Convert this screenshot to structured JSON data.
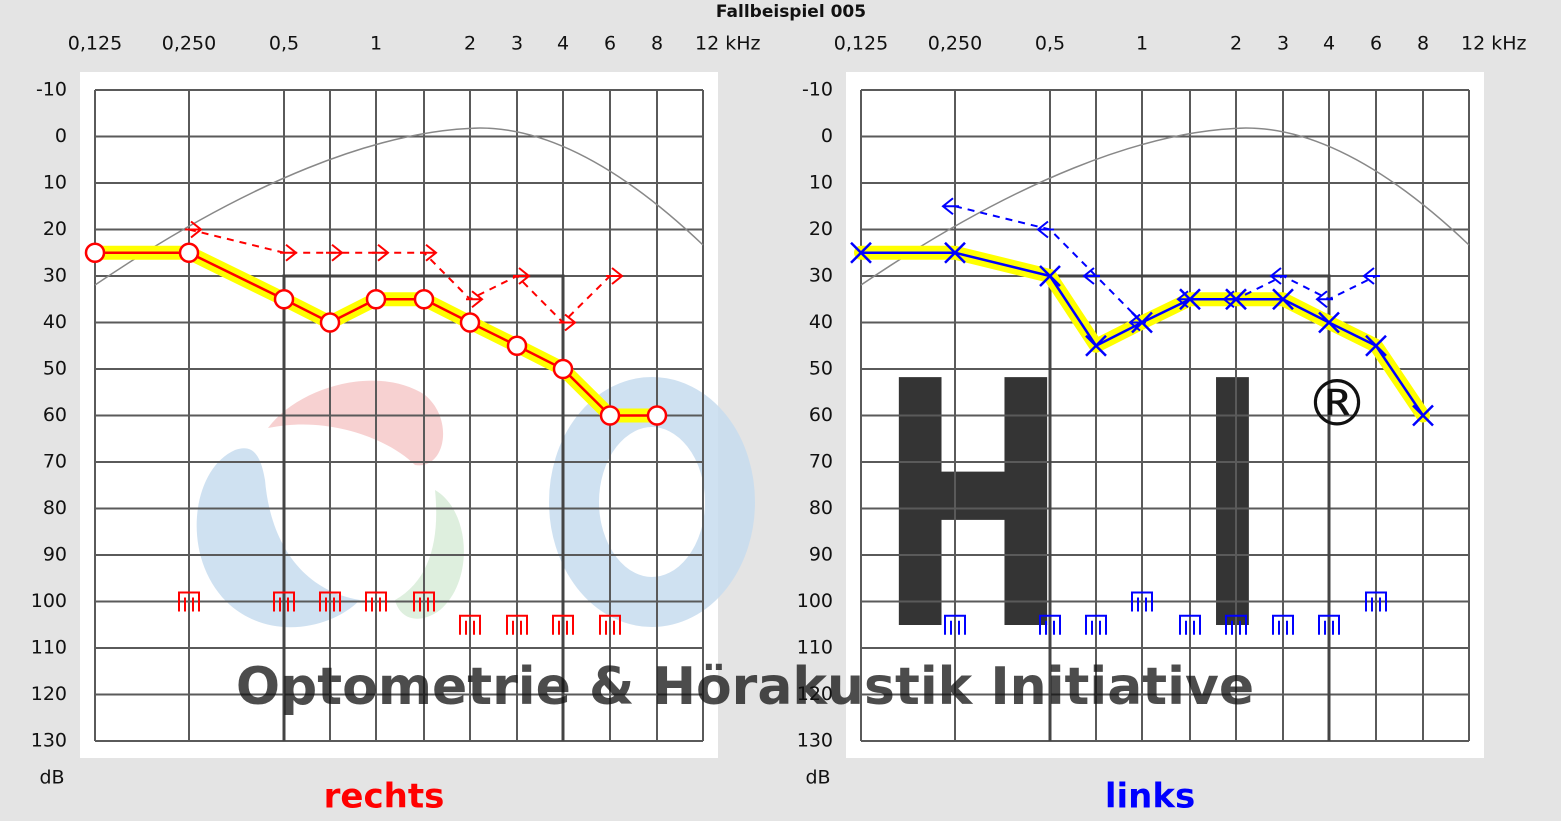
{
  "title": "Fallbeispiel 005",
  "watermark": {
    "letters": [
      "H",
      "I"
    ],
    "registered": "®",
    "text": "Optometrie & Hörakustik Initiative"
  },
  "chart_data": [
    {
      "type": "line",
      "title": "rechts",
      "title_color": "#ff0000",
      "y_label": "dB",
      "categories": [
        "0,125",
        "0,250",
        "0,5",
        null,
        "1",
        null,
        "2",
        "3",
        "4",
        "6",
        "8",
        "12 kHz"
      ],
      "ylim": [
        -10,
        130
      ],
      "y_inverted": true,
      "yticks": [
        -10,
        0,
        10,
        20,
        30,
        40,
        50,
        60,
        70,
        80,
        90,
        100,
        110,
        120,
        130
      ],
      "grid": true,
      "series": [
        {
          "color": "#ff0000",
          "marker": "circle",
          "highlight": "#ffff00",
          "dashed": false,
          "line": true,
          "values": [
            25,
            25,
            35,
            40,
            35,
            35,
            40,
            45,
            50,
            60,
            60,
            null
          ]
        },
        {
          "color": "#ff0000",
          "marker": "arrow-right",
          "dashed": true,
          "line": true,
          "values": [
            null,
            20,
            25,
            25,
            25,
            25,
            35,
            30,
            40,
            30,
            null,
            null
          ]
        },
        {
          "color": "#ff0000",
          "marker": "ucl",
          "line": false,
          "values": [
            null,
            100,
            100,
            100,
            100,
            100,
            105,
            105,
            105,
            105,
            null,
            null
          ]
        }
      ]
    },
    {
      "type": "line",
      "title": "links",
      "title_color": "#0000ff",
      "y_label": "dB",
      "categories": [
        "0,125",
        "0,250",
        "0,5",
        null,
        "1",
        null,
        "2",
        "3",
        "4",
        "6",
        "8",
        "12 kHz"
      ],
      "ylim": [
        -10,
        130
      ],
      "y_inverted": true,
      "yticks": [
        -10,
        0,
        10,
        20,
        30,
        40,
        50,
        60,
        70,
        80,
        90,
        100,
        110,
        120,
        130
      ],
      "grid": true,
      "series": [
        {
          "color": "#0000ff",
          "marker": "cross",
          "highlight": "#ffff00",
          "dashed": false,
          "line": true,
          "values": [
            25,
            25,
            30,
            45,
            40,
            35,
            35,
            35,
            40,
            45,
            60,
            null
          ]
        },
        {
          "color": "#0000ff",
          "marker": "arrow-left",
          "dashed": true,
          "line": true,
          "values": [
            null,
            15,
            20,
            30,
            40,
            35,
            35,
            30,
            35,
            30,
            null,
            null
          ]
        },
        {
          "color": "#0000ff",
          "marker": "ucl",
          "line": false,
          "values": [
            null,
            105,
            105,
            105,
            100,
            105,
            105,
            105,
            105,
            100,
            null,
            null
          ]
        }
      ]
    }
  ]
}
